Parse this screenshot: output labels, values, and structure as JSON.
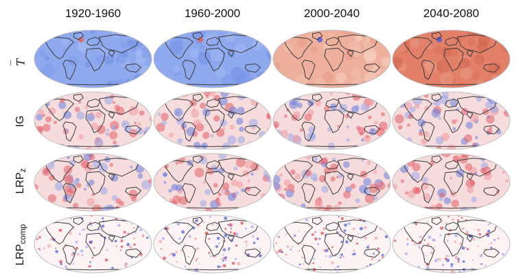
{
  "columns": [
    "1920-1960",
    "1960-2000",
    "2000-2040",
    "2040-2080"
  ],
  "rows": [
    {
      "label_main": "T",
      "label_sub": "",
      "bar": "‾",
      "italic": true,
      "style": "tbar",
      "tints": [
        "cold",
        "cold",
        "warm",
        "hot"
      ]
    },
    {
      "label_main": "IG",
      "label_sub": "",
      "bar": "",
      "italic": false,
      "style": "mixed",
      "tints": [
        "mix",
        "mix",
        "mix",
        "mix"
      ]
    },
    {
      "label_main": "LRP",
      "label_sub": "z",
      "bar": "",
      "italic": false,
      "style": "mixed",
      "tints": [
        "mix",
        "mix",
        "mix",
        "mix"
      ]
    },
    {
      "label_main": "LRP",
      "label_sub": "comp",
      "bar": "",
      "italic": false,
      "style": "sparse",
      "tints": [
        "sparse",
        "sparse",
        "sparse",
        "sparse"
      ]
    }
  ],
  "colors": {
    "cold": "#8fa9ef",
    "warm": "#eeb09d",
    "hot": "#e2806a",
    "mix_base": "#f6dcdc",
    "red": "#e2606a",
    "blue": "#6a7fe0",
    "sparse_base": "#fbf3f4",
    "coast": "#3a3a3a"
  }
}
